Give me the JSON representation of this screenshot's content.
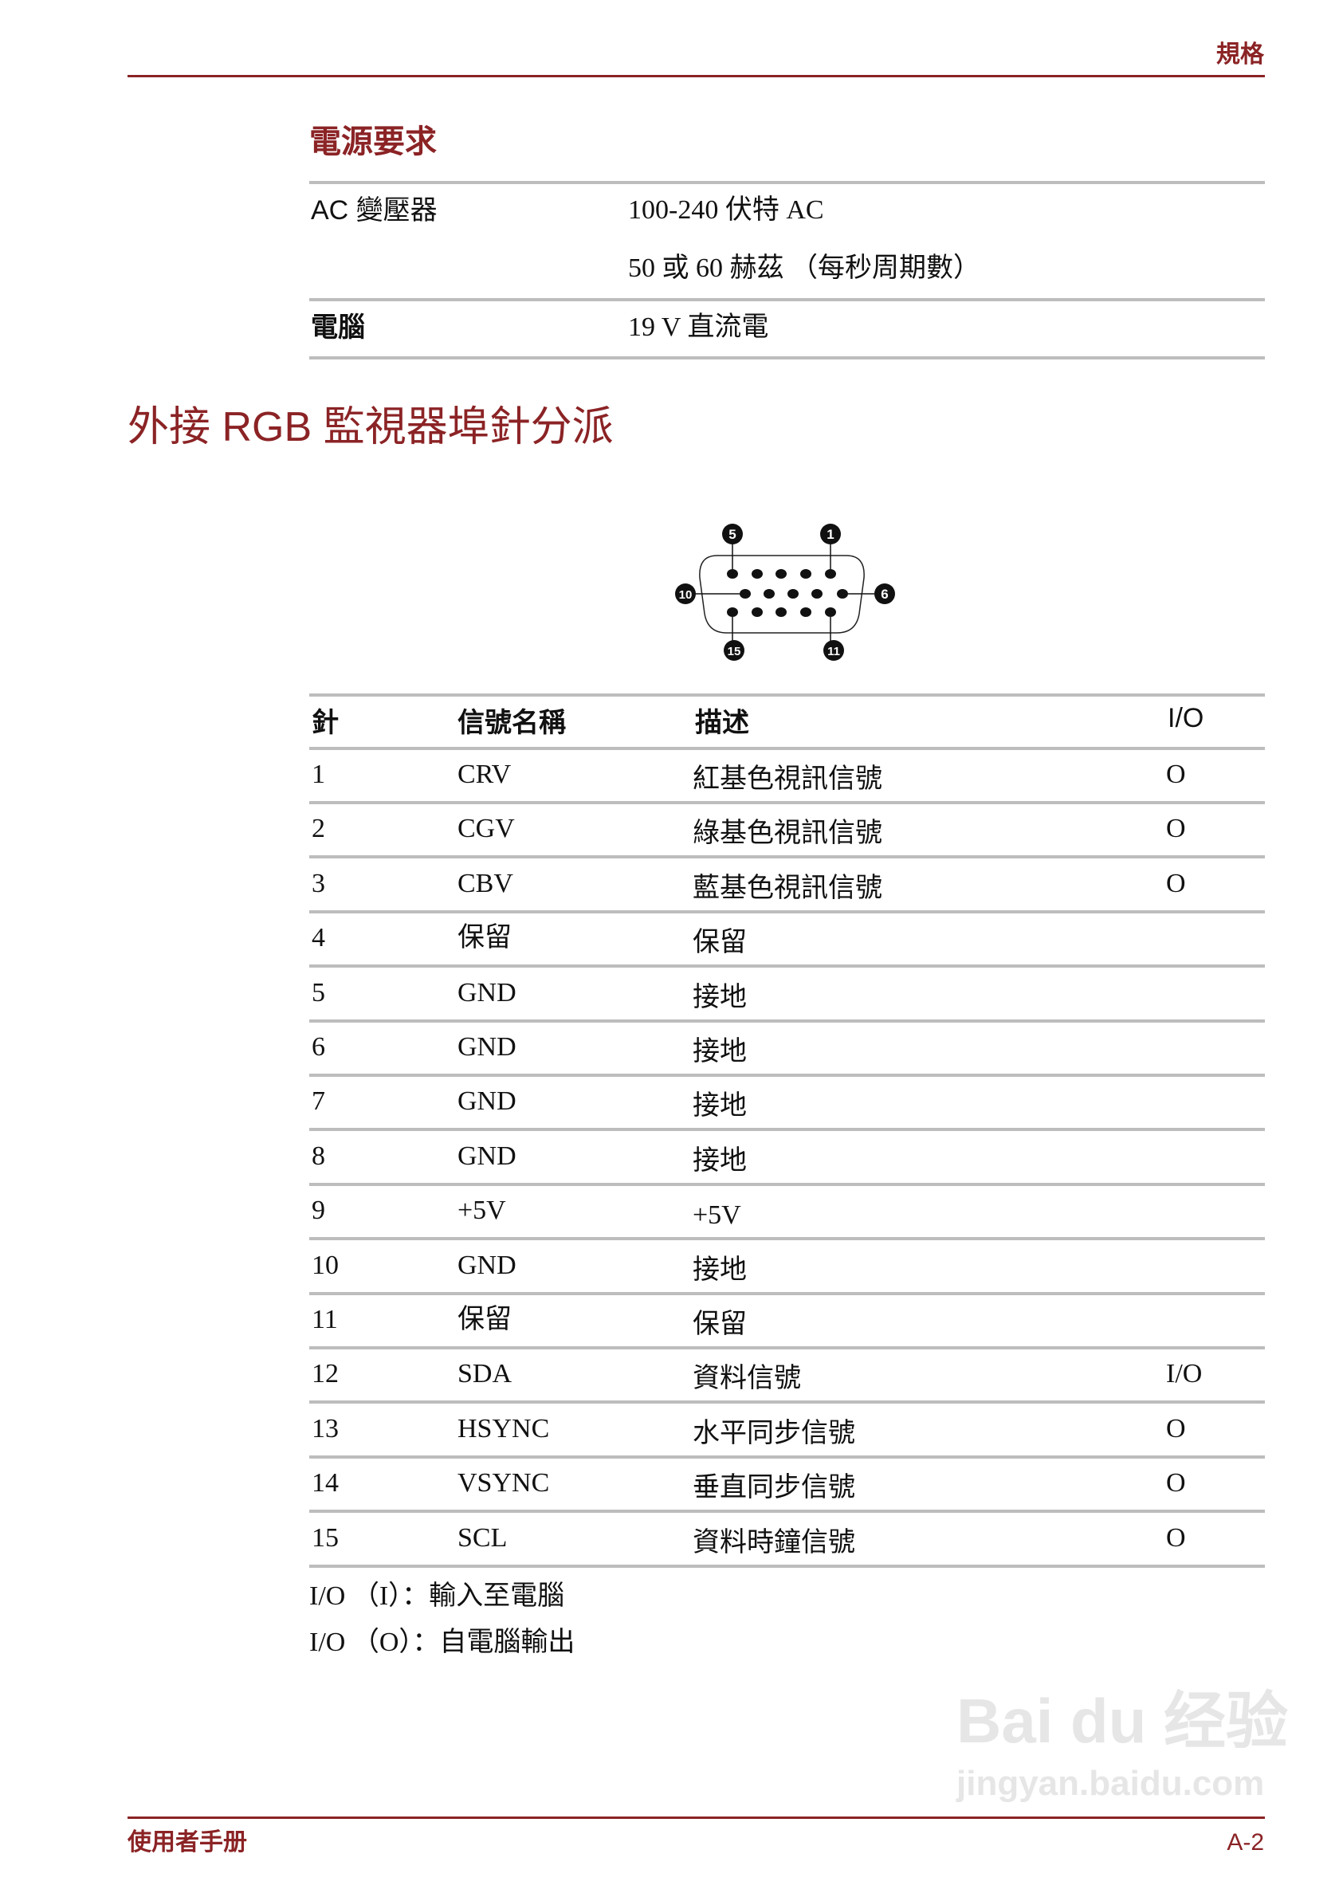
{
  "header": {
    "section": "規格"
  },
  "power": {
    "title": "電源要求",
    "rows": [
      {
        "label": "AC 變壓器",
        "values": [
          "100-240 伏特 AC",
          "50 或 60 赫茲 （每秒周期數）"
        ]
      },
      {
        "label": "電腦",
        "values": [
          "19 V 直流電"
        ]
      }
    ]
  },
  "rgb": {
    "title": "外接 RGB 監視器埠針分派",
    "connector": {
      "pin_labels": [
        "5",
        "1",
        "10",
        "6",
        "15",
        "11"
      ]
    },
    "table": {
      "headers": [
        "針",
        "信號名稱",
        "描述",
        "I/O"
      ],
      "rows": [
        [
          "1",
          "CRV",
          "紅基色視訊信號",
          "O"
        ],
        [
          "2",
          "CGV",
          "綠基色視訊信號",
          "O"
        ],
        [
          "3",
          "CBV",
          "藍基色視訊信號",
          "O"
        ],
        [
          "4",
          "保留",
          "保留",
          ""
        ],
        [
          "5",
          "GND",
          "接地",
          ""
        ],
        [
          "6",
          "GND",
          "接地",
          ""
        ],
        [
          "7",
          "GND",
          "接地",
          ""
        ],
        [
          "8",
          "GND",
          "接地",
          ""
        ],
        [
          "9",
          "+5V",
          "+5V",
          ""
        ],
        [
          "10",
          "GND",
          "接地",
          ""
        ],
        [
          "11",
          "保留",
          "保留",
          ""
        ],
        [
          "12",
          "SDA",
          "資料信號",
          "I/O"
        ],
        [
          "13",
          "HSYNC",
          "水平同步信號",
          "O"
        ],
        [
          "14",
          "VSYNC",
          "垂直同步信號",
          "O"
        ],
        [
          "15",
          "SCL",
          "資料時鐘信號",
          "O"
        ]
      ]
    },
    "notes": [
      "I/O （I）：輸入至電腦",
      "I/O （O）：自電腦輸出"
    ]
  },
  "footer": {
    "manual": "使用者手册",
    "page": "A-2"
  },
  "watermark": {
    "logo": "Bai du 经验",
    "url": "jingyan.baidu.com"
  },
  "colors": {
    "accent": "#8b2325",
    "rule": "#bdbdbd"
  }
}
